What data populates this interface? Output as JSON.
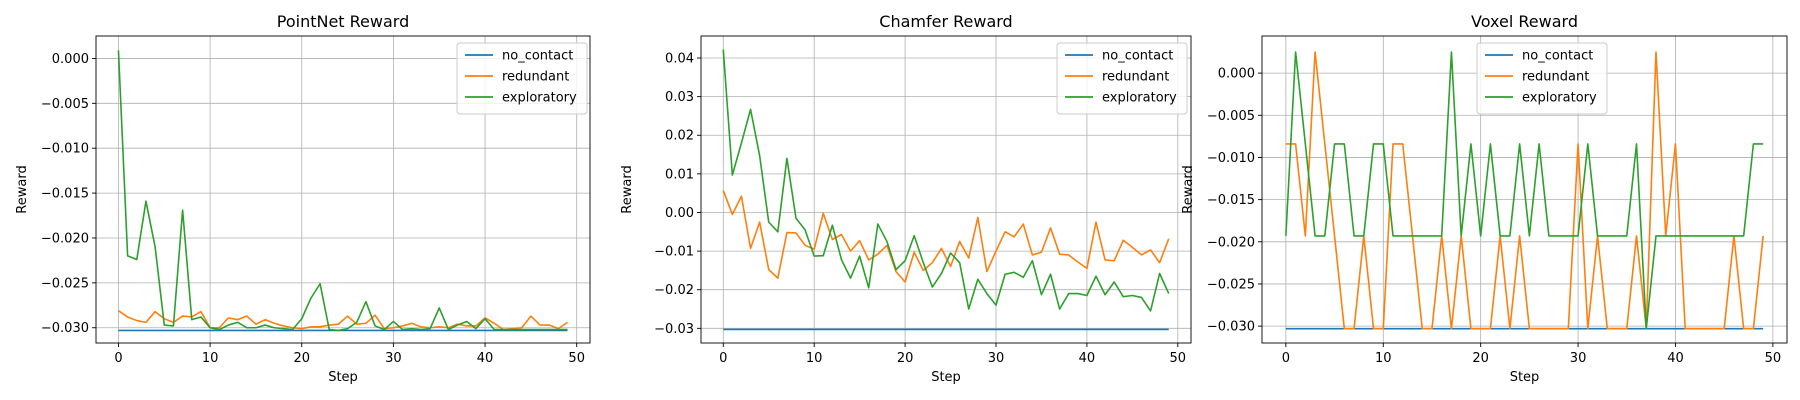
{
  "chart_data": [
    {
      "type": "line",
      "title": "PointNet Reward",
      "xlabel": "Step",
      "ylabel": "Reward",
      "xlim": [
        -2.45,
        51.45
      ],
      "ylim": [
        -0.0317,
        0.0025
      ],
      "xticks": [
        0,
        10,
        20,
        30,
        40,
        50
      ],
      "xtick_labels": [
        "0",
        "10",
        "20",
        "30",
        "40",
        "50"
      ],
      "yticks": [
        0.0,
        -0.005,
        -0.01,
        -0.015,
        -0.02,
        -0.025,
        -0.03
      ],
      "ytick_labels": [
        "0.000",
        "−0.005",
        "−0.010",
        "−0.015",
        "−0.020",
        "−0.025",
        "−0.030"
      ],
      "grid": true,
      "legend_position": "top-right",
      "series": [
        {
          "name": "no_contact",
          "color": "#1f77b4",
          "values": [
            -0.0303,
            -0.0303,
            -0.0303,
            -0.0303,
            -0.0303,
            -0.0303,
            -0.0303,
            -0.0303,
            -0.0303,
            -0.0303,
            -0.0303,
            -0.0303,
            -0.0303,
            -0.0303,
            -0.0303,
            -0.0303,
            -0.0303,
            -0.0303,
            -0.0303,
            -0.0303,
            -0.0303,
            -0.0303,
            -0.0303,
            -0.0303,
            -0.0303,
            -0.0303,
            -0.0303,
            -0.0303,
            -0.0303,
            -0.0303,
            -0.0303,
            -0.0303,
            -0.0303,
            -0.0303,
            -0.0303,
            -0.0303,
            -0.0303,
            -0.0303,
            -0.0303,
            -0.0303,
            -0.0303,
            -0.0303,
            -0.0303,
            -0.0303,
            -0.0303,
            -0.0303,
            -0.0303,
            -0.0303,
            -0.0303,
            -0.0303
          ]
        },
        {
          "name": "redundant",
          "color": "#ff7f0e",
          "values": [
            -0.0281,
            -0.0288,
            -0.0292,
            -0.0294,
            -0.0282,
            -0.029,
            -0.0294,
            -0.0287,
            -0.0288,
            -0.0282,
            -0.03,
            -0.03,
            -0.0289,
            -0.0291,
            -0.0287,
            -0.0296,
            -0.0291,
            -0.0295,
            -0.0298,
            -0.03,
            -0.0301,
            -0.0299,
            -0.0299,
            -0.0297,
            -0.0296,
            -0.0287,
            -0.0296,
            -0.0295,
            -0.0286,
            -0.0301,
            -0.03,
            -0.0298,
            -0.0295,
            -0.0299,
            -0.03,
            -0.0299,
            -0.03,
            -0.0296,
            -0.0298,
            -0.0298,
            -0.0289,
            -0.0295,
            -0.0302,
            -0.0301,
            -0.03,
            -0.0287,
            -0.0297,
            -0.0297,
            -0.0301,
            -0.0294
          ]
        },
        {
          "name": "exploratory",
          "color": "#2ca02c",
          "values": [
            0.0009,
            -0.022,
            -0.0224,
            -0.0159,
            -0.021,
            -0.0297,
            -0.0298,
            -0.0169,
            -0.0291,
            -0.0288,
            -0.03,
            -0.0302,
            -0.0297,
            -0.0294,
            -0.03,
            -0.03,
            -0.0297,
            -0.03,
            -0.0301,
            -0.0302,
            -0.029,
            -0.0267,
            -0.0251,
            -0.0302,
            -0.0303,
            -0.0301,
            -0.0294,
            -0.0271,
            -0.0298,
            -0.0302,
            -0.0293,
            -0.0302,
            -0.0301,
            -0.0302,
            -0.0301,
            -0.0278,
            -0.0302,
            -0.0297,
            -0.0293,
            -0.0301,
            -0.029,
            -0.0302,
            -0.0302,
            -0.0302,
            -0.0302,
            -0.0302,
            -0.0302,
            -0.0302,
            -0.0302,
            -0.0302
          ]
        }
      ]
    },
    {
      "type": "line",
      "title": "Chamfer Reward",
      "xlabel": "Step",
      "ylabel": "Reward",
      "xlim": [
        -2.45,
        51.45
      ],
      "ylim": [
        -0.0338,
        0.0457
      ],
      "xticks": [
        0,
        10,
        20,
        30,
        40,
        50
      ],
      "xtick_labels": [
        "0",
        "10",
        "20",
        "30",
        "40",
        "50"
      ],
      "yticks": [
        0.04,
        0.03,
        0.02,
        0.01,
        0.0,
        -0.01,
        -0.02,
        -0.03
      ],
      "ytick_labels": [
        "0.04",
        "0.03",
        "0.02",
        "0.01",
        "0.00",
        "−0.01",
        "−0.02",
        "−0.03"
      ],
      "grid": true,
      "legend_position": "top-right",
      "series": [
        {
          "name": "no_contact",
          "color": "#1f77b4",
          "values": [
            -0.0303,
            -0.0303,
            -0.0303,
            -0.0303,
            -0.0303,
            -0.0303,
            -0.0303,
            -0.0303,
            -0.0303,
            -0.0303,
            -0.0303,
            -0.0303,
            -0.0303,
            -0.0303,
            -0.0303,
            -0.0303,
            -0.0303,
            -0.0303,
            -0.0303,
            -0.0303,
            -0.0303,
            -0.0303,
            -0.0303,
            -0.0303,
            -0.0303,
            -0.0303,
            -0.0303,
            -0.0303,
            -0.0303,
            -0.0303,
            -0.0303,
            -0.0303,
            -0.0303,
            -0.0303,
            -0.0303,
            -0.0303,
            -0.0303,
            -0.0303,
            -0.0303,
            -0.0303,
            -0.0303,
            -0.0303,
            -0.0303,
            -0.0303,
            -0.0303,
            -0.0303,
            -0.0303,
            -0.0303,
            -0.0303,
            -0.0303
          ]
        },
        {
          "name": "redundant",
          "color": "#ff7f0e",
          "values": [
            0.0057,
            -0.0005,
            0.0042,
            -0.0093,
            -0.0025,
            -0.0148,
            -0.017,
            -0.0052,
            -0.0053,
            -0.0085,
            -0.0095,
            -0.0002,
            -0.007,
            -0.0057,
            -0.01,
            -0.0073,
            -0.0123,
            -0.0108,
            -0.0085,
            -0.0153,
            -0.018,
            -0.0103,
            -0.015,
            -0.013,
            -0.0093,
            -0.014,
            -0.0075,
            -0.0118,
            -0.0013,
            -0.0153,
            -0.01,
            -0.005,
            -0.0063,
            -0.003,
            -0.011,
            -0.0103,
            -0.004,
            -0.0108,
            -0.011,
            -0.0128,
            -0.0145,
            -0.0025,
            -0.0123,
            -0.0125,
            -0.0072,
            -0.009,
            -0.011,
            -0.0097,
            -0.013,
            -0.0068
          ]
        },
        {
          "name": "exploratory",
          "color": "#2ca02c",
          "values": [
            0.0422,
            0.0097,
            0.018,
            0.0267,
            0.0147,
            -0.0025,
            -0.005,
            0.014,
            -0.0015,
            -0.0045,
            -0.0113,
            -0.0112,
            -0.0033,
            -0.0122,
            -0.017,
            -0.0113,
            -0.0195,
            -0.003,
            -0.0075,
            -0.0148,
            -0.0125,
            -0.006,
            -0.013,
            -0.0193,
            -0.0158,
            -0.0105,
            -0.013,
            -0.025,
            -0.0173,
            -0.021,
            -0.024,
            -0.016,
            -0.0155,
            -0.0168,
            -0.0125,
            -0.0213,
            -0.016,
            -0.025,
            -0.021,
            -0.021,
            -0.0215,
            -0.0165,
            -0.0213,
            -0.018,
            -0.0218,
            -0.0215,
            -0.022,
            -0.0255,
            -0.0158,
            -0.021
          ]
        }
      ]
    },
    {
      "type": "line",
      "title": "Voxel Reward",
      "xlabel": "Step",
      "ylabel": "Reward",
      "xlim": [
        -2.45,
        51.45
      ],
      "ylim": [
        -0.032,
        0.0044
      ],
      "xticks": [
        0,
        10,
        20,
        30,
        40,
        50
      ],
      "xtick_labels": [
        "0",
        "10",
        "20",
        "30",
        "40",
        "50"
      ],
      "yticks": [
        0.0,
        -0.005,
        -0.01,
        -0.015,
        -0.02,
        -0.025,
        -0.03
      ],
      "ytick_labels": [
        "0.000",
        "−0.005",
        "−0.010",
        "−0.015",
        "−0.020",
        "−0.025",
        "−0.030"
      ],
      "grid": true,
      "legend_position": "top-center",
      "series": [
        {
          "name": "no_contact",
          "color": "#1f77b4",
          "values": [
            -0.0303,
            -0.0303,
            -0.0303,
            -0.0303,
            -0.0303,
            -0.0303,
            -0.0303,
            -0.0303,
            -0.0303,
            -0.0303,
            -0.0303,
            -0.0303,
            -0.0303,
            -0.0303,
            -0.0303,
            -0.0303,
            -0.0303,
            -0.0303,
            -0.0303,
            -0.0303,
            -0.0303,
            -0.0303,
            -0.0303,
            -0.0303,
            -0.0303,
            -0.0303,
            -0.0303,
            -0.0303,
            -0.0303,
            -0.0303,
            -0.0303,
            -0.0303,
            -0.0303,
            -0.0303,
            -0.0303,
            -0.0303,
            -0.0303,
            -0.0303,
            -0.0303,
            -0.0303,
            -0.0303,
            -0.0303,
            -0.0303,
            -0.0303,
            -0.0303,
            -0.0303,
            -0.0303,
            -0.0303,
            -0.0303,
            -0.0303
          ]
        },
        {
          "name": "redundant",
          "color": "#ff7f0e",
          "values": [
            -0.0084,
            -0.0084,
            -0.0193,
            0.0025,
            -0.0084,
            -0.0193,
            -0.0303,
            -0.0303,
            -0.0193,
            -0.0303,
            -0.0303,
            -0.0084,
            -0.0084,
            -0.0193,
            -0.0303,
            -0.0303,
            -0.0193,
            -0.0303,
            -0.0193,
            -0.0303,
            -0.0303,
            -0.0303,
            -0.0193,
            -0.0303,
            -0.0193,
            -0.0303,
            -0.0303,
            -0.0303,
            -0.0303,
            -0.0303,
            -0.0084,
            -0.0303,
            -0.0193,
            -0.0303,
            -0.0303,
            -0.0303,
            -0.0193,
            -0.0303,
            0.0025,
            -0.0193,
            -0.0084,
            -0.0303,
            -0.0303,
            -0.0303,
            -0.0303,
            -0.0303,
            -0.0193,
            -0.0303,
            -0.0303,
            -0.0193
          ]
        },
        {
          "name": "exploratory",
          "color": "#2ca02c",
          "values": [
            -0.0193,
            0.0025,
            -0.0084,
            -0.0193,
            -0.0193,
            -0.0084,
            -0.0084,
            -0.0193,
            -0.0193,
            -0.0084,
            -0.0084,
            -0.0193,
            -0.0193,
            -0.0193,
            -0.0193,
            -0.0193,
            -0.0193,
            0.0025,
            -0.0193,
            -0.0084,
            -0.0193,
            -0.0084,
            -0.0193,
            -0.0193,
            -0.0084,
            -0.0193,
            -0.0084,
            -0.0193,
            -0.0193,
            -0.0193,
            -0.0193,
            -0.0084,
            -0.0193,
            -0.0193,
            -0.0193,
            -0.0193,
            -0.0084,
            -0.0303,
            -0.0193,
            -0.0193,
            -0.0193,
            -0.0193,
            -0.0193,
            -0.0193,
            -0.0193,
            -0.0193,
            -0.0193,
            -0.0193,
            -0.0084,
            -0.0084
          ]
        }
      ]
    }
  ]
}
